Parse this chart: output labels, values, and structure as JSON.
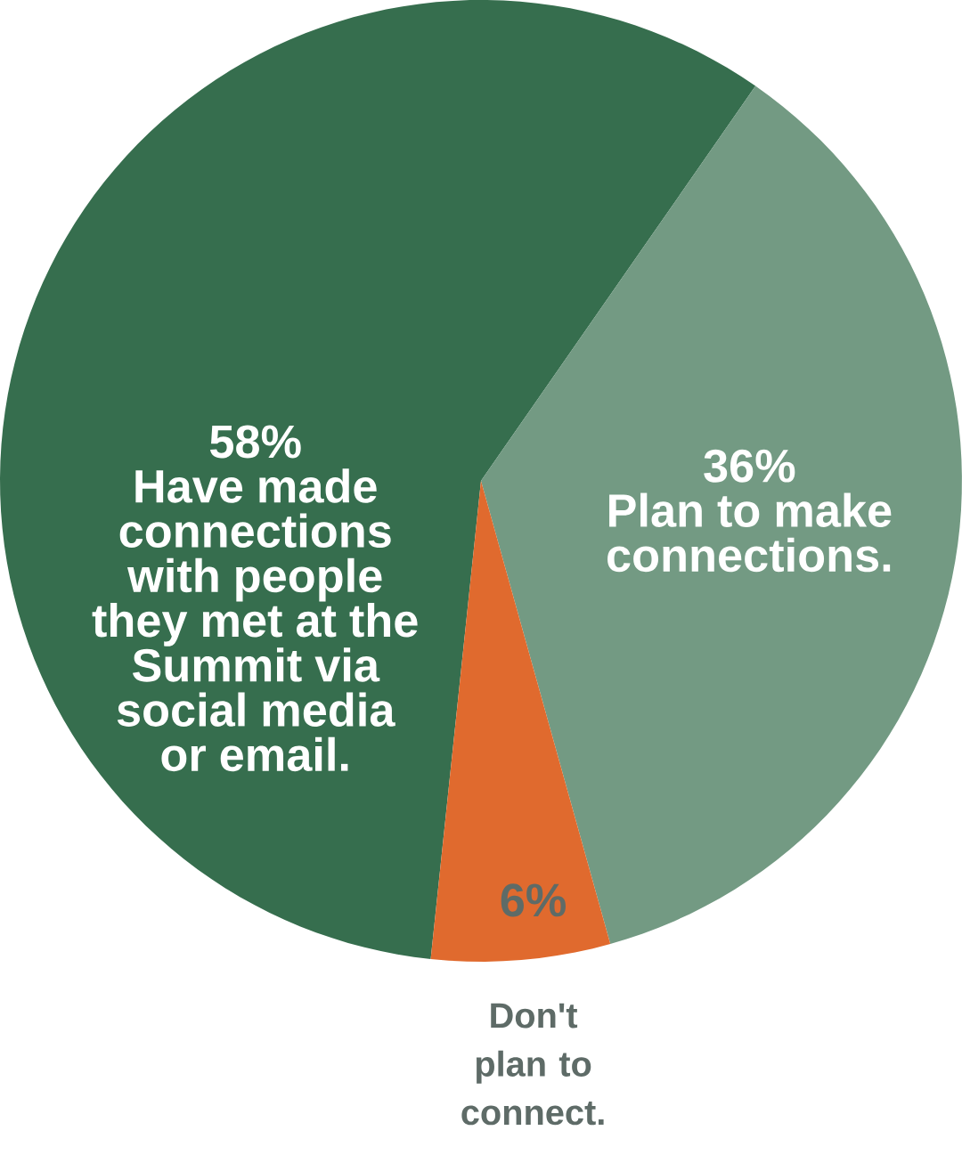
{
  "chart_data": {
    "type": "pie",
    "categories": [
      "Have made connections with people they met at the Summit via social media or email.",
      "Plan to make connections.",
      "Don't plan to connect."
    ],
    "values": [
      58,
      36,
      6
    ],
    "value_labels": [
      "58%",
      "36%",
      "6%"
    ],
    "colors": [
      "#366e4e",
      "#739a83",
      "#e06a2e"
    ]
  }
}
